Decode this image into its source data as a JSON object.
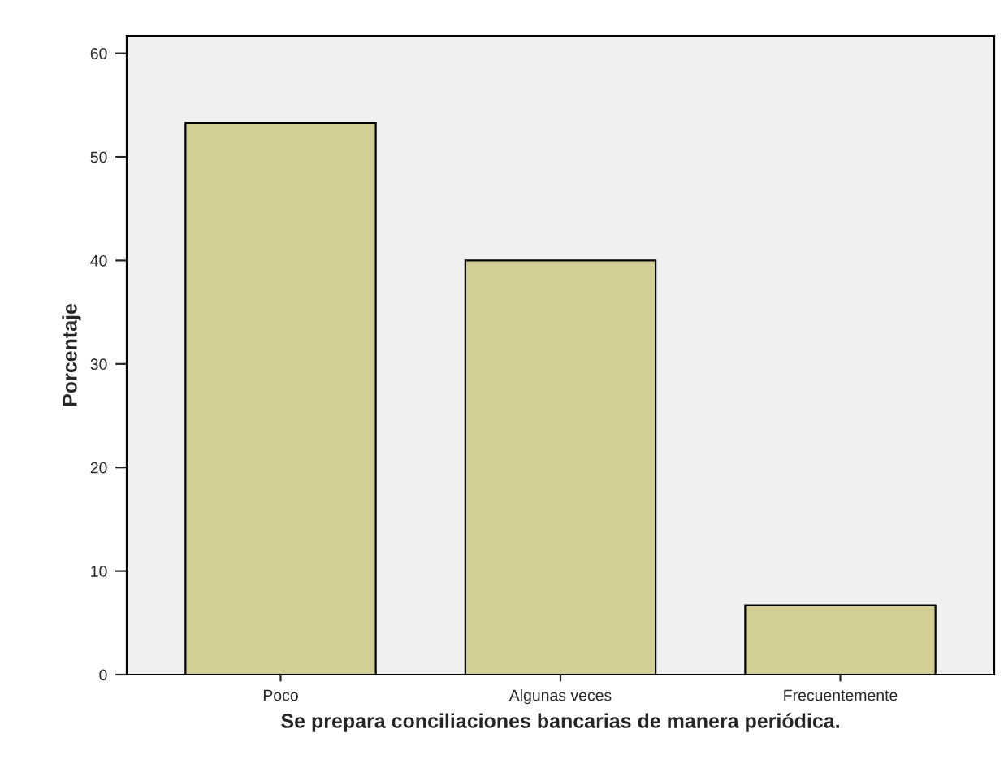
{
  "chart_data": {
    "type": "bar",
    "xlabel": "Se prepara conciliaciones bancarias de manera periódica.",
    "ylabel": "Porcentaje",
    "categories": [
      "Poco",
      "Algunas veces",
      "Frecuentemente"
    ],
    "values": [
      53.3,
      40.0,
      6.7
    ],
    "color": "#d3ce96",
    "ylim": [
      0,
      61.7
    ],
    "yticks": [
      0,
      10,
      20,
      30,
      40,
      50,
      60
    ],
    "grid": false
  }
}
